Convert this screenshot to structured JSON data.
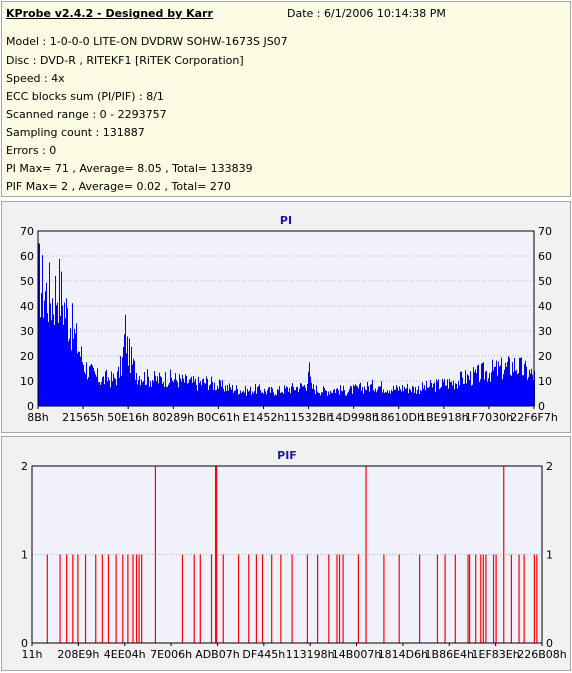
{
  "info": {
    "title": "KProbe v2.4.2 - Designed by Karr",
    "date": "Date : 6/1/2006 10:14:38 PM",
    "lines": [
      "Model : 1-0-0-0 LITE-ON DVDRW SOHW-1673S JS07",
      "Disc : DVD-R , RITEKF1 [RiTEK Corporation]",
      "Speed : 4x",
      "ECC blocks sum (PI/PIF) : 8/1",
      "Scanned range : 0 - 2293757",
      "Sampling count : 131887",
      "Errors : 0",
      "PI Max= 71 , Average= 8.05 , Total= 133839",
      "PIF Max= 2 , Average= 0.02 , Total= 270"
    ]
  },
  "colors": {
    "pi": "#0000ff",
    "pif": "#ff0000",
    "plot_bg": "#f1f1fb",
    "grid": "#b4b4d2",
    "title": "#1a1aa8"
  },
  "chart_data": [
    {
      "type": "area",
      "title": "PI",
      "ylim": [
        0,
        70
      ],
      "yticks": [
        0,
        10,
        20,
        30,
        40,
        50,
        60,
        70
      ],
      "xlim": [
        0,
        2293757
      ],
      "xtick_labels": [
        "8Bh",
        "21565h",
        "50E16h",
        "80289h",
        "B0C61h",
        "E1452h",
        "11532Bh",
        "14D998h",
        "18610Dh",
        "1BE918h",
        "1F7030h",
        "22F6F7h"
      ],
      "grid": true,
      "series": [
        {
          "x": [
            139,
            136549,
            331286,
            524937,
            724065,
            922706,
            1135403,
            1366424,
            1597709,
            1829144,
            2060336,
            2291447
          ],
          "values": [
            [
              0,
              69
            ],
            [
              0.01,
              62
            ],
            [
              0.02,
              60
            ],
            [
              0.03,
              57
            ],
            [
              0.04,
              65
            ],
            [
              0.05,
              55
            ],
            [
              0.06,
              48
            ],
            [
              0.07,
              40
            ],
            [
              0.08,
              32
            ],
            [
              0.09,
              24
            ],
            [
              0.1,
              19
            ],
            [
              0.11,
              17
            ],
            [
              0.12,
              15
            ],
            [
              0.13,
              14
            ],
            [
              0.14,
              15
            ],
            [
              0.15,
              14
            ],
            [
              0.16,
              16
            ],
            [
              0.17,
              24
            ],
            [
              0.175,
              41
            ],
            [
              0.18,
              30
            ],
            [
              0.19,
              22
            ],
            [
              0.2,
              17
            ],
            [
              0.22,
              15
            ],
            [
              0.24,
              14
            ],
            [
              0.26,
              15
            ],
            [
              0.28,
              14
            ],
            [
              0.3,
              13
            ],
            [
              0.32,
              12
            ],
            [
              0.34,
              13
            ],
            [
              0.36,
              11
            ],
            [
              0.38,
              10
            ],
            [
              0.4,
              9
            ],
            [
              0.42,
              8
            ],
            [
              0.44,
              9
            ],
            [
              0.46,
              8
            ],
            [
              0.48,
              8
            ],
            [
              0.5,
              9
            ],
            [
              0.52,
              10
            ],
            [
              0.54,
              11
            ],
            [
              0.545,
              22
            ],
            [
              0.55,
              10
            ],
            [
              0.56,
              9
            ],
            [
              0.58,
              8
            ],
            [
              0.6,
              9
            ],
            [
              0.62,
              8
            ],
            [
              0.64,
              9
            ],
            [
              0.66,
              10
            ],
            [
              0.68,
              11
            ],
            [
              0.7,
              10
            ],
            [
              0.72,
              9
            ],
            [
              0.74,
              10
            ],
            [
              0.76,
              9
            ],
            [
              0.78,
              10
            ],
            [
              0.8,
              11
            ],
            [
              0.82,
              12
            ],
            [
              0.84,
              13
            ],
            [
              0.86,
              15
            ],
            [
              0.88,
              16
            ],
            [
              0.9,
              18
            ],
            [
              0.92,
              19
            ],
            [
              0.94,
              20
            ],
            [
              0.96,
              22
            ],
            [
              0.98,
              19
            ],
            [
              1.0,
              16
            ]
          ]
        }
      ]
    },
    {
      "type": "bar",
      "title": "PIF",
      "ylim": [
        0,
        2
      ],
      "yticks": [
        0,
        1,
        2
      ],
      "xlim": [
        0,
        2293757
      ],
      "xtick_labels": [
        "11h",
        "208E9h",
        "4EE04h",
        "7E006h",
        "ADB07h",
        "DF445h",
        "113198h",
        "14B007h",
        "1814D6h",
        "1B86E4h",
        "1EF83Eh",
        "226B08h"
      ],
      "grid": true,
      "series": [
        {
          "spikes": [
            [
              0.03,
              1
            ],
            [
              0.055,
              1
            ],
            [
              0.068,
              1
            ],
            [
              0.08,
              1
            ],
            [
              0.09,
              1
            ],
            [
              0.105,
              1
            ],
            [
              0.125,
              1
            ],
            [
              0.138,
              1
            ],
            [
              0.15,
              1
            ],
            [
              0.165,
              1
            ],
            [
              0.178,
              1
            ],
            [
              0.188,
              1
            ],
            [
              0.198,
              1
            ],
            [
              0.205,
              1
            ],
            [
              0.21,
              1
            ],
            [
              0.215,
              1
            ],
            [
              0.242,
              2
            ],
            [
              0.295,
              1
            ],
            [
              0.318,
              1
            ],
            [
              0.33,
              1
            ],
            [
              0.352,
              1
            ],
            [
              0.36,
              2
            ],
            [
              0.362,
              2
            ],
            [
              0.375,
              1
            ],
            [
              0.405,
              1
            ],
            [
              0.425,
              1
            ],
            [
              0.44,
              1
            ],
            [
              0.452,
              1
            ],
            [
              0.47,
              1
            ],
            [
              0.488,
              1
            ],
            [
              0.51,
              1
            ],
            [
              0.54,
              1
            ],
            [
              0.56,
              1
            ],
            [
              0.582,
              1
            ],
            [
              0.598,
              1
            ],
            [
              0.603,
              1
            ],
            [
              0.61,
              1
            ],
            [
              0.64,
              1
            ],
            [
              0.655,
              2
            ],
            [
              0.69,
              1
            ],
            [
              0.72,
              1
            ],
            [
              0.76,
              1
            ],
            [
              0.795,
              1
            ],
            [
              0.81,
              1
            ],
            [
              0.83,
              1
            ],
            [
              0.855,
              1
            ],
            [
              0.858,
              1
            ],
            [
              0.87,
              1
            ],
            [
              0.88,
              1
            ],
            [
              0.885,
              1
            ],
            [
              0.89,
              1
            ],
            [
              0.905,
              1
            ],
            [
              0.91,
              1
            ],
            [
              0.925,
              2
            ],
            [
              0.94,
              1
            ],
            [
              0.955,
              1
            ],
            [
              0.965,
              1
            ],
            [
              0.985,
              1
            ],
            [
              0.99,
              1
            ]
          ]
        }
      ]
    }
  ]
}
